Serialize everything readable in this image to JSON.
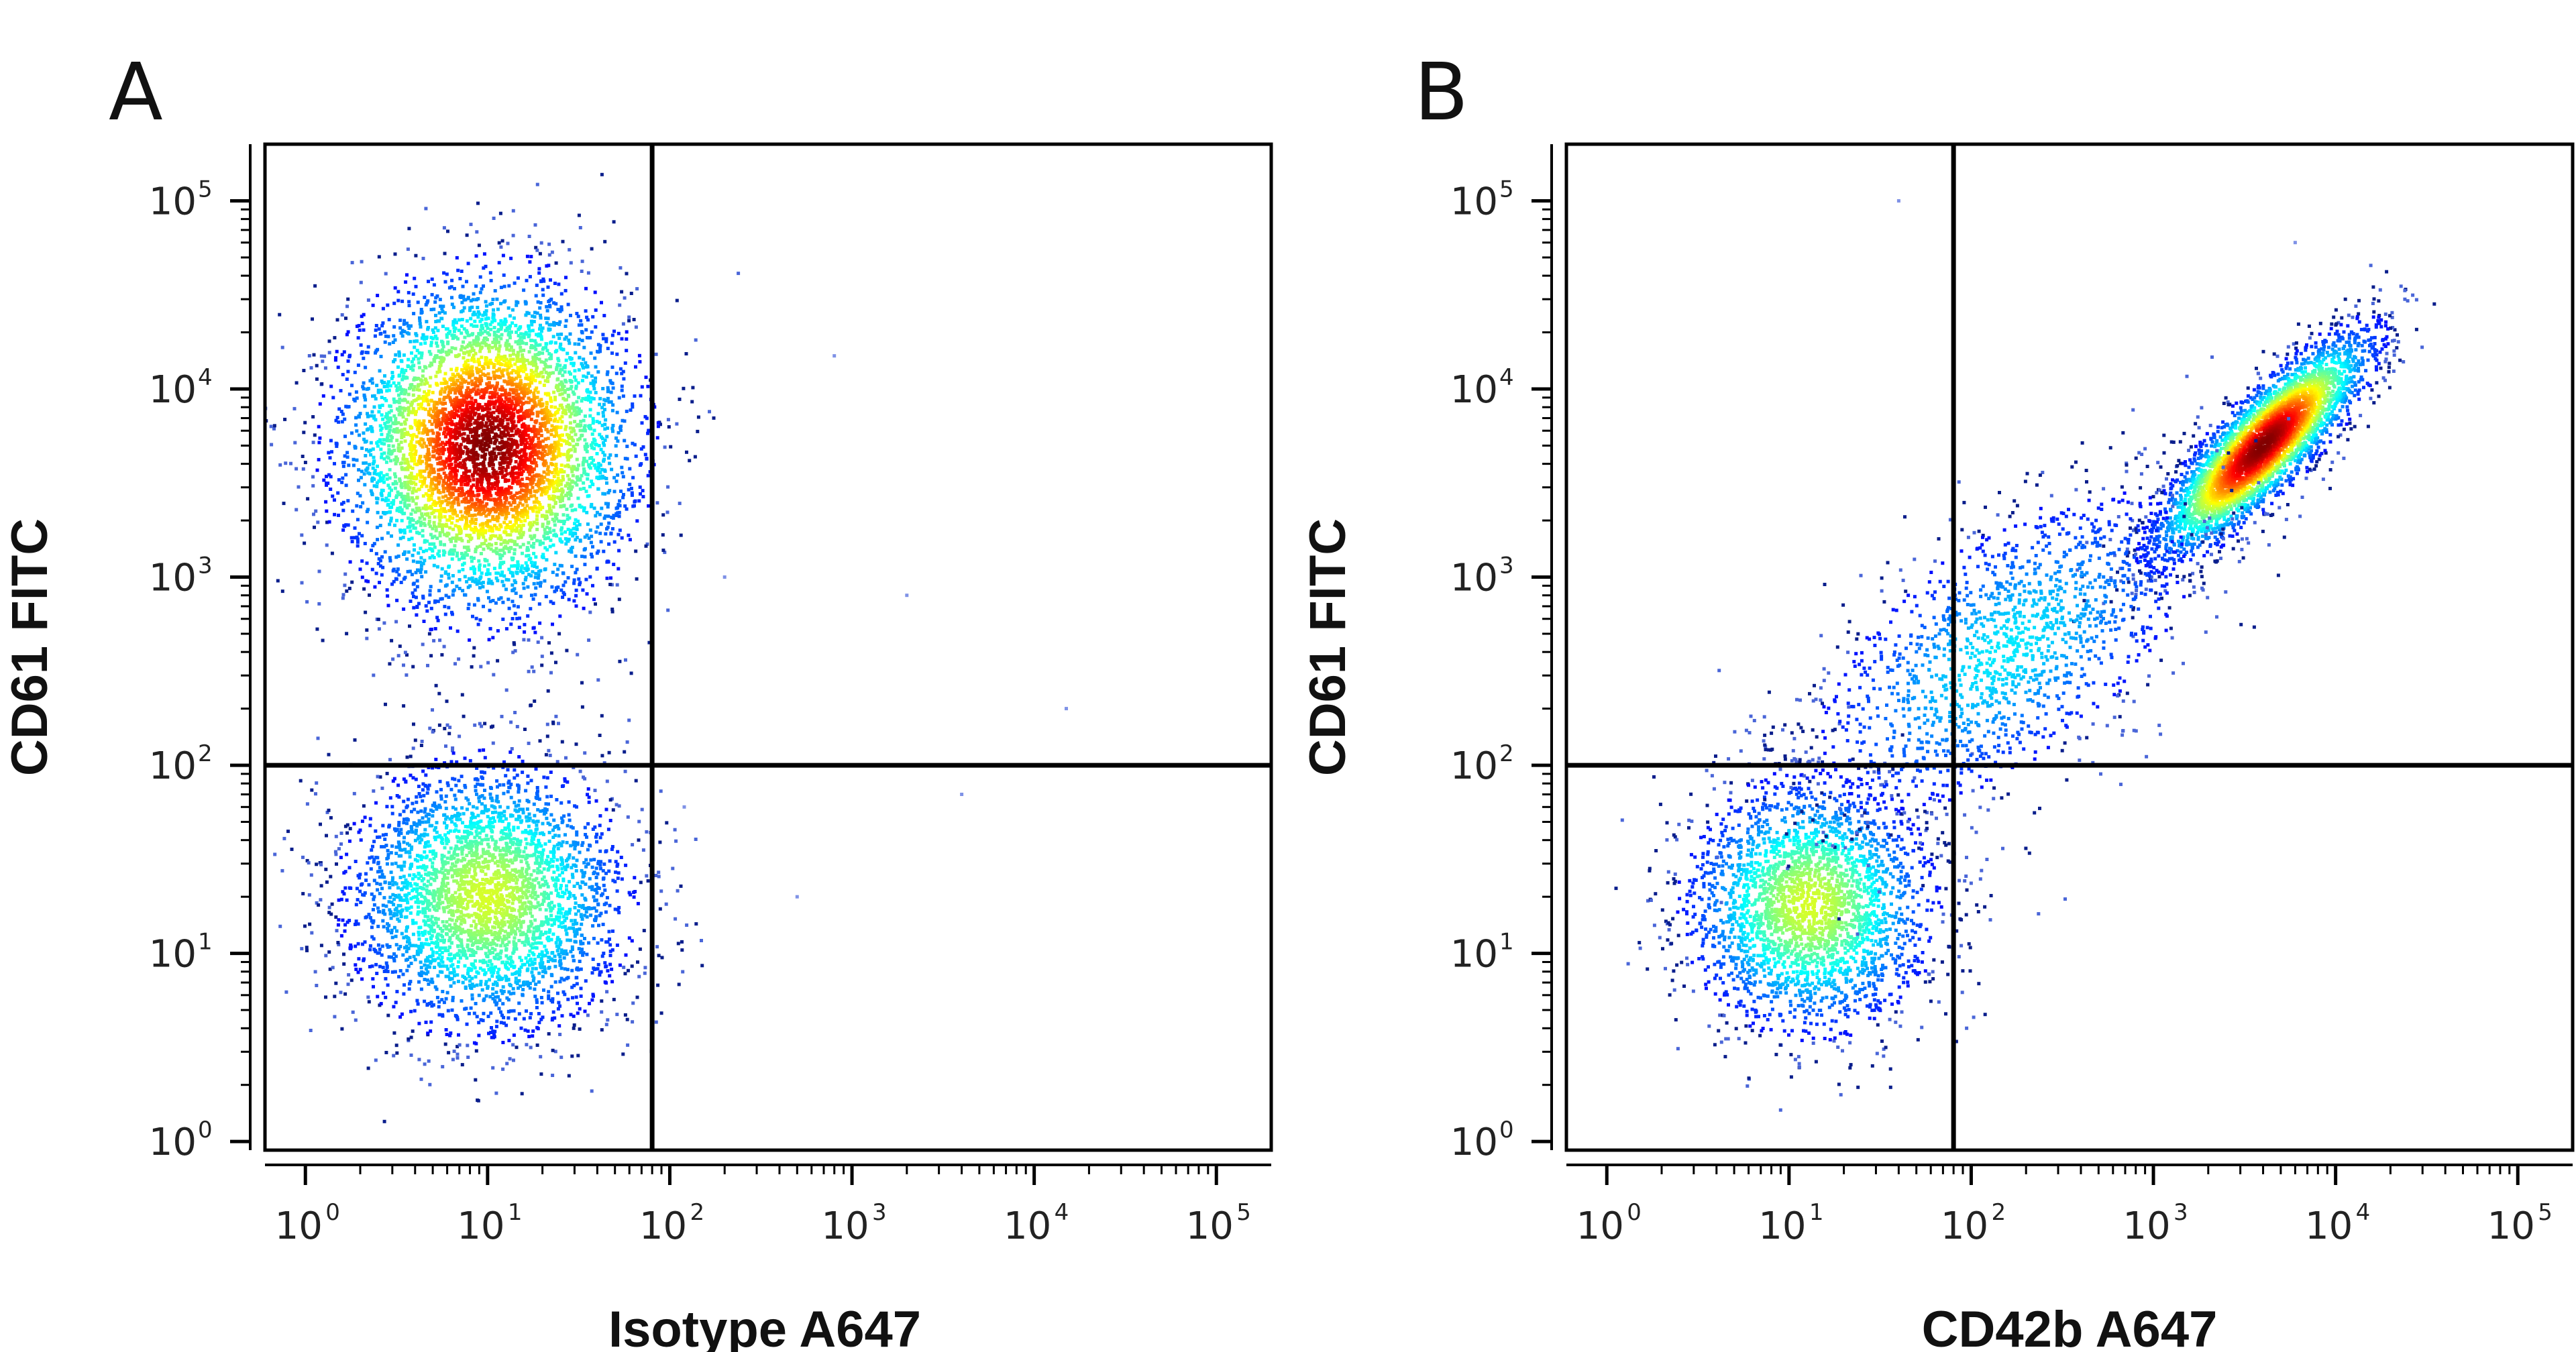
{
  "chart_data": [
    {
      "type": "scatter",
      "panel_label": "A",
      "xlabel": "Isotype A647",
      "ylabel": "CD61 FITC",
      "x_scale": "log",
      "y_scale": "log",
      "xlim": [
        0.6,
        200000
      ],
      "ylim": [
        0.9,
        200000
      ],
      "x_ticks": [
        1,
        10,
        100,
        1000,
        10000,
        100000
      ],
      "y_ticks": [
        1,
        10,
        100,
        1000,
        10000,
        100000
      ],
      "quadrant_gate": {
        "x": 80,
        "y": 100
      },
      "populations": [
        {
          "name": "CD61 high",
          "center": [
            10,
            5000
          ],
          "log_spread": [
            0.38,
            0.42
          ],
          "peak_density": "high",
          "weight": 0.62
        },
        {
          "name": "CD61 low",
          "center": [
            10,
            20
          ],
          "log_spread": [
            0.38,
            0.36
          ],
          "peak_density": "medium",
          "weight": 0.38
        }
      ],
      "sparse_events": [
        [
          120,
          60
        ],
        [
          200,
          1000
        ],
        [
          800,
          15000
        ],
        [
          3000,
          100
        ],
        [
          4000,
          70
        ],
        [
          15000,
          200
        ],
        [
          2000,
          800
        ],
        [
          500,
          20
        ]
      ]
    },
    {
      "type": "scatter",
      "panel_label": "B",
      "xlabel": "CD42b A647",
      "ylabel": "CD61 FITC",
      "x_scale": "log",
      "y_scale": "log",
      "xlim": [
        0.6,
        200000
      ],
      "ylim": [
        0.9,
        200000
      ],
      "x_ticks": [
        1,
        10,
        100,
        1000,
        10000,
        100000
      ],
      "y_ticks": [
        1,
        10,
        100,
        1000,
        10000,
        100000
      ],
      "quadrant_gate": {
        "x": 80,
        "y": 100
      },
      "populations": [
        {
          "name": "CD42b+ CD61+",
          "center": [
            4000,
            5000
          ],
          "log_spread": [
            0.28,
            0.28
          ],
          "correlation": 0.85,
          "peak_density": "high",
          "weight": 0.5
        },
        {
          "name": "CD42b- CD61-",
          "center": [
            13,
            18
          ],
          "log_spread": [
            0.33,
            0.33
          ],
          "peak_density": "medium",
          "weight": 0.32
        },
        {
          "name": "transition",
          "center": [
            150,
            400
          ],
          "log_spread": [
            0.55,
            0.45
          ],
          "correlation": 0.6,
          "peak_density": "low",
          "weight": 0.18
        }
      ],
      "sparse_events": [
        [
          40,
          100000
        ],
        [
          6000,
          60000
        ]
      ]
    }
  ]
}
